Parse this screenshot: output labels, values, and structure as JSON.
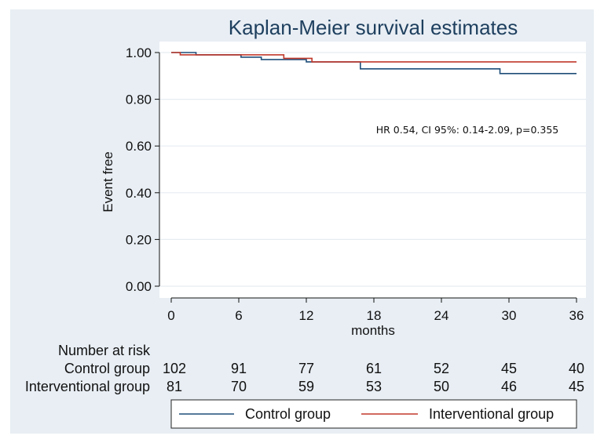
{
  "chart_data": {
    "type": "line",
    "title": "Kaplan-Meier survival estimates",
    "xlabel": "months",
    "ylabel": "Event free",
    "xlim": [
      0,
      36
    ],
    "ylim": [
      0,
      1
    ],
    "x_ticks": [
      0,
      6,
      12,
      18,
      24,
      30,
      36
    ],
    "x_tick_labels": [
      "0",
      "6",
      "12",
      "18",
      "24",
      "30",
      "36"
    ],
    "y_ticks": [
      0,
      0.2,
      0.4,
      0.6,
      0.8,
      1.0
    ],
    "y_tick_labels": [
      "0.00",
      "0.20",
      "0.40",
      "0.60",
      "0.80",
      "1.00"
    ],
    "grid": true,
    "series": [
      {
        "name": "Control group",
        "color": "#1f4e79",
        "steps": [
          {
            "x": 0,
            "y": 1.0
          },
          {
            "x": 2.2,
            "y": 0.99
          },
          {
            "x": 6.2,
            "y": 0.98
          },
          {
            "x": 8.0,
            "y": 0.97
          },
          {
            "x": 12.0,
            "y": 0.96
          },
          {
            "x": 16.8,
            "y": 0.93
          },
          {
            "x": 29.2,
            "y": 0.91
          },
          {
            "x": 36,
            "y": 0.91
          }
        ]
      },
      {
        "name": "Interventional group",
        "color": "#c0392b",
        "steps": [
          {
            "x": 0,
            "y": 1.0
          },
          {
            "x": 0.8,
            "y": 0.99
          },
          {
            "x": 10.0,
            "y": 0.975
          },
          {
            "x": 12.5,
            "y": 0.96
          },
          {
            "x": 36,
            "y": 0.96
          }
        ]
      }
    ],
    "annotation": "HR 0.54, CI 95%: 0.14-2.09, p=0.355",
    "annotation_color": "#c00000",
    "number_at_risk": {
      "header": "Number at risk",
      "rows": [
        {
          "label": "Control group",
          "values": [
            "102",
            "91",
            "77",
            "61",
            "52",
            "45",
            "40"
          ]
        },
        {
          "label": "Interventional group",
          "values": [
            "81",
            "70",
            "59",
            "53",
            "50",
            "46",
            "45"
          ]
        }
      ]
    },
    "legend": {
      "placement": "bottom",
      "entries": [
        "Control group",
        "Interventional group"
      ]
    }
  },
  "colors": {
    "outer_background": "#e8eef4",
    "plot_background": "#ffffff",
    "grid": "#e6ecf1",
    "title": "#1e3f5e"
  }
}
